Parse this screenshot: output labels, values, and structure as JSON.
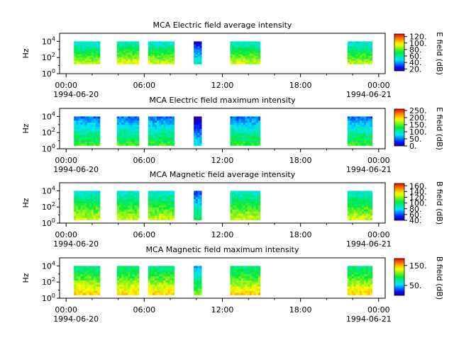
{
  "chart_data": [
    {
      "type": "heatmap",
      "title": "MCA  Electric field average intensity",
      "ylabel": "Hz",
      "colorbar_label": "E field (dB)",
      "colorbar_range": [
        14,
        128
      ],
      "colorbar_ticks": [
        120,
        100,
        80,
        60,
        40,
        20
      ],
      "colorbar_tick_labels": [
        "120.",
        "100.",
        "80.",
        "60.",
        "40.",
        "20."
      ],
      "colormap": "rainbow",
      "ylog": true,
      "ylim_exp": [
        0,
        5
      ],
      "y_ticks_exp": [
        0,
        2,
        4
      ],
      "signal_band_exp": [
        1.2,
        4.0
      ],
      "blocks": [
        {
          "start": 0.6,
          "end": 2.6,
          "level": 70
        },
        {
          "start": 3.9,
          "end": 5.6,
          "level": 75
        },
        {
          "start": 6.3,
          "end": 8.3,
          "level": 72
        },
        {
          "start": 9.8,
          "end": 10.4,
          "level": 40
        },
        {
          "start": 12.6,
          "end": 14.9,
          "level": 72
        },
        {
          "start": 21.6,
          "end": 23.5,
          "level": 70
        }
      ]
    },
    {
      "type": "heatmap",
      "title": "MCA  Electric field maximum intensity",
      "ylabel": "Hz",
      "colorbar_label": "E field (dB)",
      "colorbar_range": [
        0,
        260
      ],
      "colorbar_ticks": [
        250,
        200,
        150,
        100,
        50,
        0
      ],
      "colorbar_tick_labels": [
        "250.",
        "200.",
        "150.",
        "100.",
        "50.",
        "0."
      ],
      "colormap": "rainbow",
      "ylog": true,
      "ylim_exp": [
        0,
        5
      ],
      "y_ticks_exp": [
        0,
        2,
        4
      ],
      "signal_band_exp": [
        0.4,
        4.0
      ],
      "blocks": [
        {
          "start": 0.6,
          "end": 2.6,
          "level": 95
        },
        {
          "start": 3.9,
          "end": 5.6,
          "level": 95
        },
        {
          "start": 6.3,
          "end": 8.3,
          "level": 95
        },
        {
          "start": 9.8,
          "end": 10.4,
          "level": 40
        },
        {
          "start": 12.6,
          "end": 14.9,
          "level": 95
        },
        {
          "start": 21.6,
          "end": 23.5,
          "level": 95
        }
      ]
    },
    {
      "type": "heatmap",
      "title": "MCA  Magnetic field average intensity",
      "ylabel": "Hz",
      "colorbar_label": "B field (dB)",
      "colorbar_range": [
        40,
        168
      ],
      "colorbar_ticks": [
        160,
        140,
        120,
        100,
        80,
        60,
        40
      ],
      "colorbar_tick_labels": [
        "160.",
        "140.",
        "120.",
        "100.",
        "80.",
        "60.",
        "40."
      ],
      "colormap": "rainbow",
      "ylog": true,
      "ylim_exp": [
        0,
        5
      ],
      "y_ticks_exp": [
        0,
        2,
        4
      ],
      "signal_band_exp": [
        0.4,
        4.0
      ],
      "blocks": [
        {
          "start": 0.6,
          "end": 2.6,
          "level": 105
        },
        {
          "start": 3.9,
          "end": 5.6,
          "level": 105
        },
        {
          "start": 6.3,
          "end": 8.3,
          "level": 105
        },
        {
          "start": 9.8,
          "end": 10.4,
          "level": 80
        },
        {
          "start": 12.6,
          "end": 14.9,
          "level": 105
        },
        {
          "start": 21.6,
          "end": 23.5,
          "level": 105
        }
      ]
    },
    {
      "type": "heatmap",
      "title": "MCA  Magnetic field maximum intensity",
      "ylabel": "Hz",
      "colorbar_label": "B field (dB)",
      "colorbar_range": [
        0,
        185
      ],
      "colorbar_ticks": [
        150,
        50
      ],
      "colorbar_tick_labels": [
        "150.",
        "50."
      ],
      "colormap": "rainbow",
      "ylog": true,
      "ylim_exp": [
        0,
        5
      ],
      "y_ticks_exp": [
        0,
        2,
        4
      ],
      "signal_band_exp": [
        0.4,
        4.0
      ],
      "blocks": [
        {
          "start": 0.6,
          "end": 2.6,
          "level": 110
        },
        {
          "start": 3.9,
          "end": 5.6,
          "level": 110
        },
        {
          "start": 6.3,
          "end": 8.3,
          "level": 110
        },
        {
          "start": 9.8,
          "end": 10.4,
          "level": 80
        },
        {
          "start": 12.6,
          "end": 14.9,
          "level": 110
        },
        {
          "start": 21.6,
          "end": 23.5,
          "level": 110
        }
      ]
    }
  ],
  "x_axis": {
    "range_hours": [
      -0.5,
      24.5
    ],
    "ticks_hours": [
      0,
      6,
      12,
      18,
      24
    ],
    "tick_labels": [
      "00:00",
      "06:00",
      "12:00",
      "18:00",
      "00:00"
    ],
    "date_labels": [
      "1994-06-20",
      "1994-06-21"
    ]
  }
}
